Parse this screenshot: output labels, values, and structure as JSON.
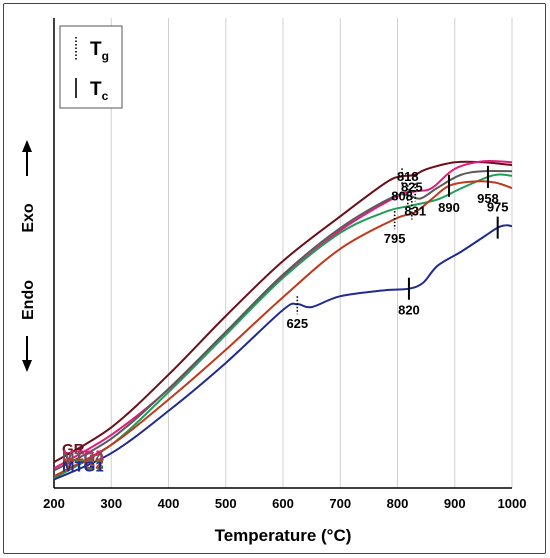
{
  "chart_data": {
    "type": "line",
    "xlabel": "Temperature (°C)",
    "ylabel_top": "Exo",
    "ylabel_bottom": "Endo",
    "xlim": [
      200,
      1000
    ],
    "x_ticks": [
      "200",
      "300",
      "400",
      "500",
      "600",
      "700",
      "800",
      "900",
      "1000"
    ],
    "grid": "vertical",
    "legend": {
      "position": "top-left",
      "items": [
        {
          "style": "dotted",
          "label": "T",
          "sub": "g"
        },
        {
          "style": "solid",
          "label": "T",
          "sub": "c"
        }
      ]
    },
    "series": [
      {
        "name": "GR",
        "color": "#6b0f1a",
        "points": [
          [
            200,
            0.945
          ],
          [
            300,
            0.871
          ],
          [
            400,
            0.759
          ],
          [
            500,
            0.634
          ],
          [
            600,
            0.517
          ],
          [
            700,
            0.422
          ],
          [
            780,
            0.35
          ],
          [
            808,
            0.337
          ],
          [
            830,
            0.334
          ],
          [
            850,
            0.322
          ],
          [
            900,
            0.307
          ],
          [
            950,
            0.307
          ],
          [
            1000,
            0.313
          ]
        ]
      },
      {
        "name": "MTG5",
        "color": "#e6197d",
        "points": [
          [
            200,
            0.958
          ],
          [
            300,
            0.887
          ],
          [
            400,
            0.79
          ],
          [
            500,
            0.668
          ],
          [
            600,
            0.551
          ],
          [
            700,
            0.452
          ],
          [
            800,
            0.379
          ],
          [
            831,
            0.369
          ],
          [
            860,
            0.362
          ],
          [
            900,
            0.321
          ],
          [
            950,
            0.305
          ],
          [
            1000,
            0.307
          ]
        ]
      },
      {
        "name": "MTG4",
        "color": "#5a5a5a",
        "points": [
          [
            200,
            0.963
          ],
          [
            300,
            0.895
          ],
          [
            400,
            0.789
          ],
          [
            500,
            0.668
          ],
          [
            600,
            0.546
          ],
          [
            700,
            0.447
          ],
          [
            790,
            0.382
          ],
          [
            818,
            0.377
          ],
          [
            840,
            0.384
          ],
          [
            870,
            0.361
          ],
          [
            910,
            0.334
          ],
          [
            950,
            0.326
          ],
          [
            1000,
            0.326
          ]
        ]
      },
      {
        "name": "MTG3",
        "color": "#1f9e5a",
        "points": [
          [
            200,
            0.979
          ],
          [
            300,
            0.908
          ],
          [
            400,
            0.796
          ],
          [
            500,
            0.674
          ],
          [
            600,
            0.553
          ],
          [
            700,
            0.457
          ],
          [
            780,
            0.412
          ],
          [
            825,
            0.399
          ],
          [
            870,
            0.386
          ],
          [
            910,
            0.363
          ],
          [
            958,
            0.338
          ],
          [
            980,
            0.333
          ],
          [
            1000,
            0.336
          ]
        ]
      },
      {
        "name": "MTG2",
        "color": "#c0391b",
        "points": [
          [
            200,
            0.975
          ],
          [
            300,
            0.908
          ],
          [
            400,
            0.812
          ],
          [
            500,
            0.706
          ],
          [
            600,
            0.594
          ],
          [
            700,
            0.491
          ],
          [
            795,
            0.428
          ],
          [
            830,
            0.414
          ],
          [
            860,
            0.385
          ],
          [
            890,
            0.357
          ],
          [
            930,
            0.348
          ],
          [
            970,
            0.35
          ],
          [
            1000,
            0.362
          ]
        ]
      },
      {
        "name": "MTG1",
        "color": "#202a8f",
        "points": [
          [
            200,
            0.982
          ],
          [
            300,
            0.926
          ],
          [
            400,
            0.836
          ],
          [
            500,
            0.734
          ],
          [
            600,
            0.621
          ],
          [
            625,
            0.609
          ],
          [
            650,
            0.615
          ],
          [
            700,
            0.592
          ],
          [
            780,
            0.579
          ],
          [
            820,
            0.576
          ],
          [
            845,
            0.563
          ],
          [
            870,
            0.527
          ],
          [
            910,
            0.498
          ],
          [
            950,
            0.466
          ],
          [
            975,
            0.446
          ],
          [
            990,
            0.441
          ],
          [
            1000,
            0.443
          ]
        ]
      }
    ],
    "annotations": [
      {
        "text": "808",
        "x": 808,
        "series": "GR",
        "marker": "Tg"
      },
      {
        "text": "831",
        "x": 831,
        "series": "MTG5",
        "marker": "Tg"
      },
      {
        "text": "818",
        "x": 818,
        "series": "MTG4",
        "marker": "Tg"
      },
      {
        "text": "825",
        "x": 825,
        "series": "MTG3",
        "marker": "Tg"
      },
      {
        "text": "958",
        "x": 958,
        "series": "MTG3",
        "marker": "Tc"
      },
      {
        "text": "795",
        "x": 795,
        "series": "MTG2",
        "marker": "Tg"
      },
      {
        "text": "890",
        "x": 890,
        "series": "MTG2",
        "marker": "Tc"
      },
      {
        "text": "625",
        "x": 625,
        "series": "MTG1",
        "marker": "Tg"
      },
      {
        "text": "820",
        "x": 820,
        "series": "MTG1",
        "marker": "Tc"
      },
      {
        "text": "975",
        "x": 975,
        "series": "MTG1",
        "marker": "Tc"
      }
    ]
  }
}
